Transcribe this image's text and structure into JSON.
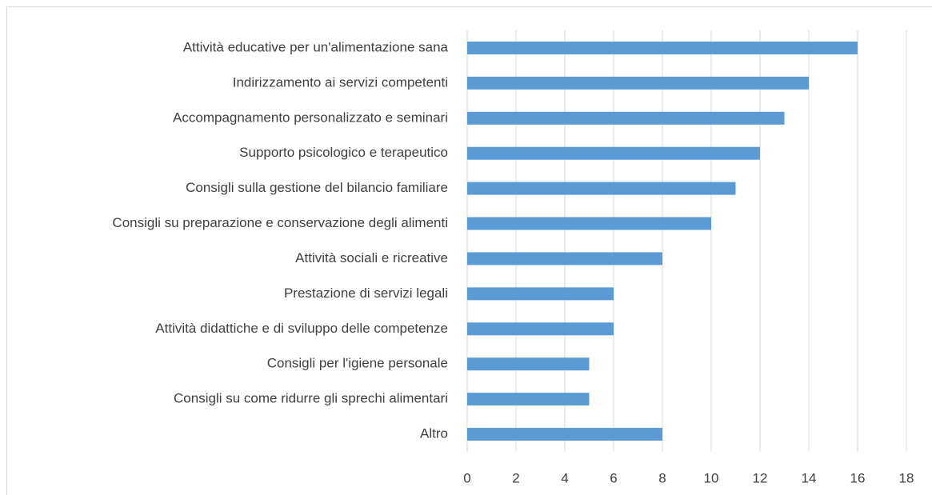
{
  "chart_data": {
    "type": "bar",
    "orientation": "horizontal",
    "categories": [
      "Attività educative per un'alimentazione sana",
      "Indirizzamento ai servizi competenti",
      "Accompagnamento personalizzato e seminari",
      "Supporto psicologico e terapeutico",
      "Consigli sulla gestione del bilancio familiare",
      "Consigli su preparazione e conservazione degli alimenti",
      "Attività sociali e ricreative",
      "Prestazione di servizi legali",
      "Attività didattiche e di sviluppo delle competenze",
      "Consigli per l'igiene personale",
      "Consigli su come ridurre gli sprechi alimentari",
      "Altro"
    ],
    "values": [
      16,
      14,
      13,
      12,
      11,
      10,
      8,
      6,
      6,
      5,
      5,
      8
    ],
    "color": "#5b9bd5",
    "xlim": [
      0,
      18
    ],
    "xticks": [
      0,
      2,
      4,
      6,
      8,
      10,
      12,
      14,
      16,
      18
    ],
    "grid": true
  }
}
